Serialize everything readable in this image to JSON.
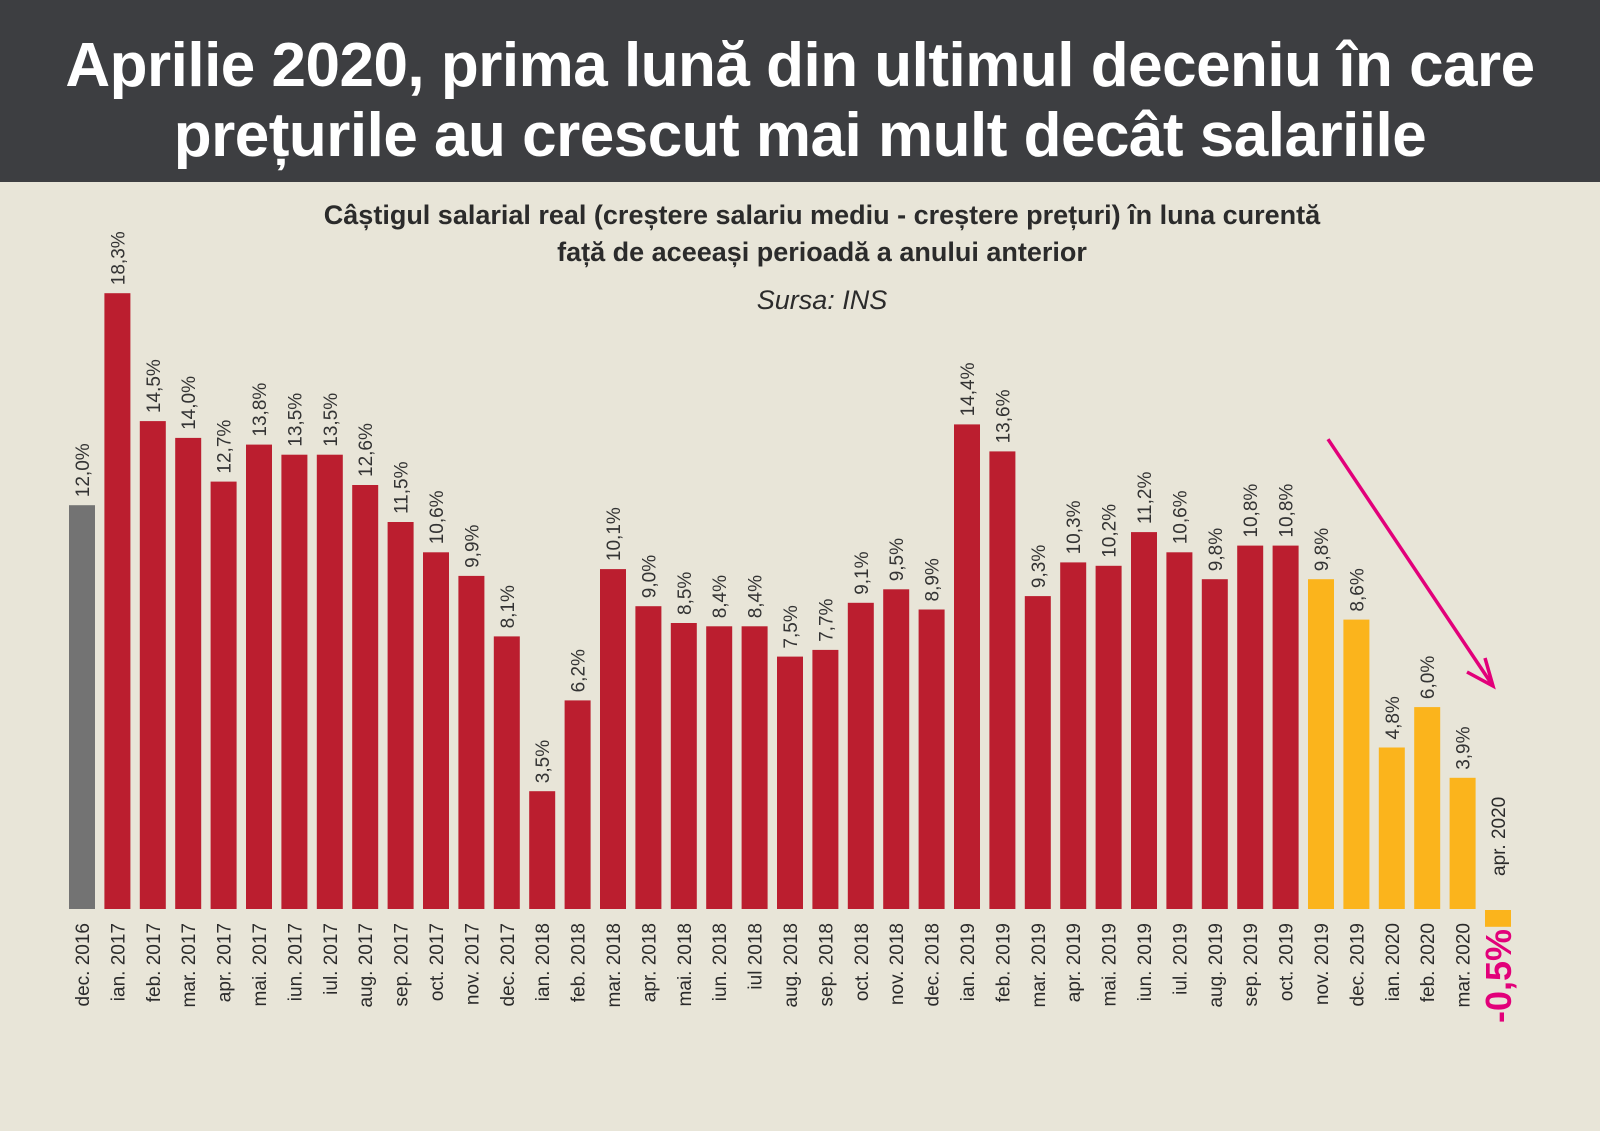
{
  "header": {
    "title_line1": "Aprilie 2020, prima lună din ultimul deceniu în care",
    "title_line2": "prețurile au crescut mai mult decât salariile"
  },
  "chart_data": {
    "type": "bar",
    "title": "Aprilie 2020, prima lună din ultimul deceniu în care prețurile au crescut mai mult decât salariile",
    "subtitle_line1": "Câștigul salarial real (creștere salariu mediu - creștere prețuri) în luna curentă",
    "subtitle_line2": "față de aceeași perioadă a anului anterior",
    "source": "Sursa: INS",
    "xlabel": "",
    "ylabel": "",
    "ylim": [
      -0.5,
      18.3
    ],
    "grid": false,
    "categories": [
      "dec. 2016",
      "ian. 2017",
      "feb. 2017",
      "mar. 2017",
      "apr. 2017",
      "mai. 2017",
      "iun. 2017",
      "iul. 2017",
      "aug. 2017",
      "sep. 2017",
      "oct. 2017",
      "nov. 2017",
      "dec. 2017",
      "ian. 2018",
      "feb. 2018",
      "mar. 2018",
      "apr. 2018",
      "mai. 2018",
      "iun. 2018",
      "iul 2018",
      "aug. 2018",
      "sep. 2018",
      "oct. 2018",
      "nov. 2018",
      "dec. 2018",
      "ian. 2019",
      "feb. 2019",
      "mar. 2019",
      "apr. 2019",
      "mai. 2019",
      "iun. 2019",
      "iul. 2019",
      "aug. 2019",
      "sep. 2019",
      "oct. 2019",
      "nov. 2019",
      "dec. 2019",
      "ian. 2020",
      "feb. 2020",
      "mar. 2020",
      "apr. 2020"
    ],
    "values": [
      12.0,
      18.3,
      14.5,
      14.0,
      12.7,
      13.8,
      13.5,
      13.5,
      12.6,
      11.5,
      10.6,
      9.9,
      8.1,
      3.5,
      6.2,
      10.1,
      9.0,
      8.5,
      8.4,
      8.4,
      7.5,
      7.7,
      9.1,
      9.5,
      8.9,
      14.4,
      13.6,
      9.3,
      10.3,
      10.2,
      11.2,
      10.6,
      9.8,
      10.8,
      10.8,
      9.8,
      8.6,
      4.8,
      6.0,
      3.9,
      -0.5
    ],
    "value_labels": [
      "12,0%",
      "18,3%",
      "14,5%",
      "14,0%",
      "12,7%",
      "13,8%",
      "13,5%",
      "13,5%",
      "12,6%",
      "11,5%",
      "10,6%",
      "9,9%",
      "8,1%",
      "3,5%",
      "6,2%",
      "10,1%",
      "9,0%",
      "8,5%",
      "8,4%",
      "8,4%",
      "7,5%",
      "7,7%",
      "9,1%",
      "9,5%",
      "8,9%",
      "14,4%",
      "13,6%",
      "9,3%",
      "10,3%",
      "10,2%",
      "11,2%",
      "10,6%",
      "9,8%",
      "10,8%",
      "10,8%",
      "9,8%",
      "8,6%",
      "4,8%",
      "6,0%",
      "3,9%",
      "-0,5%"
    ],
    "groups": [
      "gray",
      "red",
      "red",
      "red",
      "red",
      "red",
      "red",
      "red",
      "red",
      "red",
      "red",
      "red",
      "red",
      "red",
      "red",
      "red",
      "red",
      "red",
      "red",
      "red",
      "red",
      "red",
      "red",
      "red",
      "red",
      "red",
      "red",
      "red",
      "red",
      "red",
      "red",
      "red",
      "red",
      "red",
      "red",
      "yellow",
      "yellow",
      "yellow",
      "yellow",
      "yellow",
      "yellow"
    ],
    "colors": {
      "gray": "#737373",
      "red": "#bb1e2f",
      "yellow": "#fbb41c",
      "accent": "#e2007a"
    },
    "annotation": "downward trend arrow from nov. 2019 to apr. 2020"
  }
}
